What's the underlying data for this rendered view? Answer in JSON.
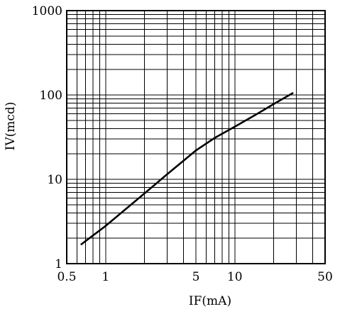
{
  "chart_data": {
    "type": "line",
    "title": "",
    "xlabel": "IF(mA)",
    "ylabel": "IV(mcd)",
    "xscale": "log",
    "yscale": "log",
    "xlim": [
      0.5,
      50
    ],
    "ylim": [
      1,
      1000
    ],
    "grid": true,
    "xticks": [
      {
        "value": 0.5,
        "label": "0.5"
      },
      {
        "value": 1,
        "label": "1"
      },
      {
        "value": 5,
        "label": "5"
      },
      {
        "value": 10,
        "label": "10"
      },
      {
        "value": 50,
        "label": "50"
      }
    ],
    "yticks": [
      {
        "value": 1,
        "label": "1"
      },
      {
        "value": 10,
        "label": "10"
      },
      {
        "value": 100,
        "label": "100"
      },
      {
        "value": 1000,
        "label": "1000"
      }
    ],
    "series": [
      {
        "x": [
          0.65,
          1.0,
          2.0,
          3.0,
          5.0,
          7.0,
          10.0,
          15.0,
          20.0,
          28.0
        ],
        "y": [
          1.7,
          2.8,
          6.8,
          11.5,
          22,
          31,
          42,
          60,
          78,
          105
        ]
      }
    ]
  }
}
